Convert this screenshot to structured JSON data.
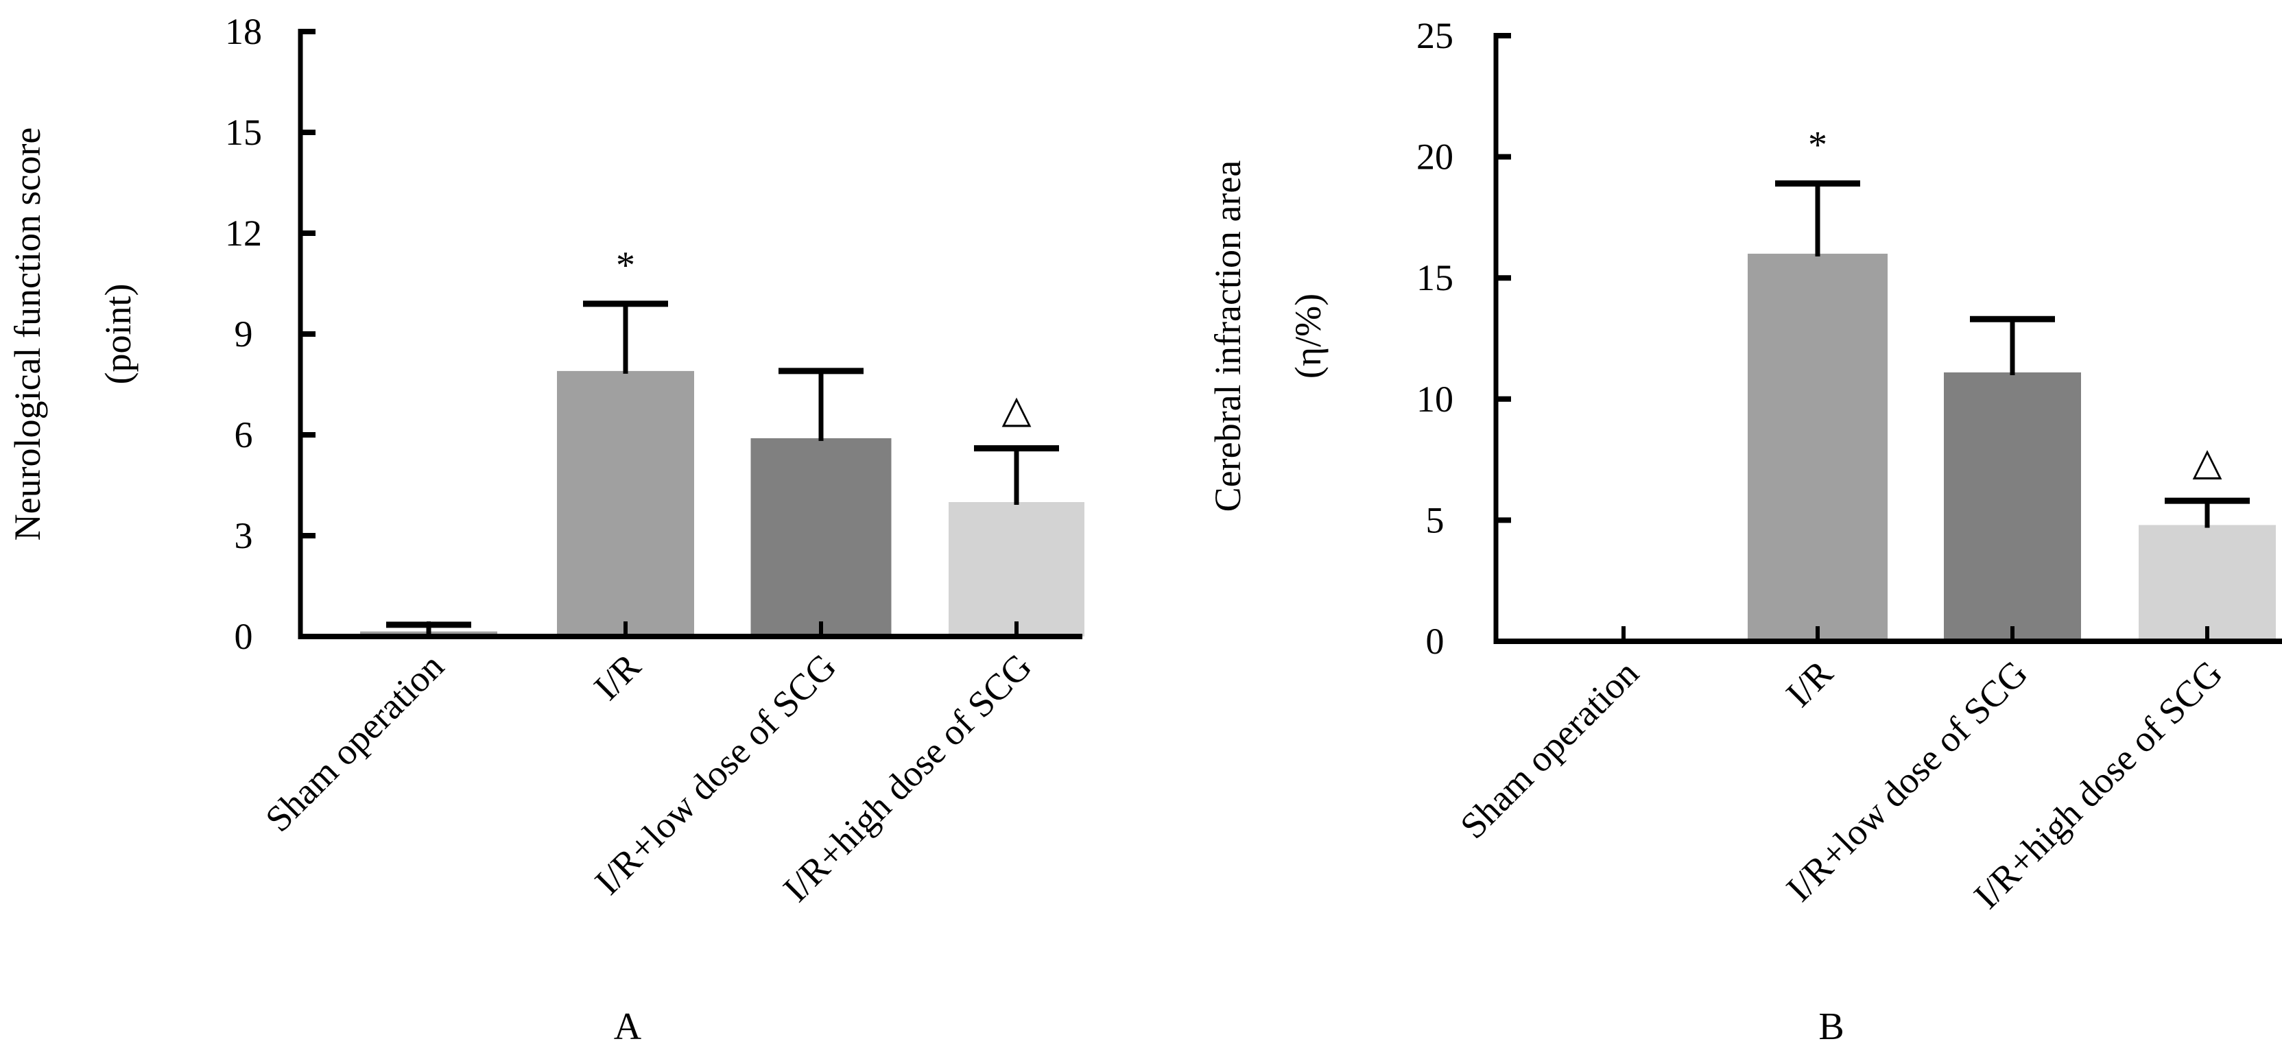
{
  "chart_data": [
    {
      "type": "bar",
      "panel": "A",
      "title": "",
      "xlabel": "",
      "ylabel": "Neurological function score",
      "ylabel_line2": "(point)",
      "ylim": [
        0,
        18
      ],
      "yticks": [
        0,
        3,
        6,
        9,
        12,
        15,
        18
      ],
      "grid": false,
      "categories": [
        "Sham operation",
        "I/R",
        "I/R+low dose of SCG",
        "I/R+high dose of SCG"
      ],
      "values": [
        0.15,
        7.9,
        5.9,
        4.0
      ],
      "error_upper": [
        0.35,
        9.9,
        7.9,
        5.6
      ],
      "markers": [
        "",
        "*",
        "",
        "△"
      ],
      "colors": [
        "#a0a0a0",
        "#a0a0a0",
        "#808080",
        "#d3d3d3"
      ]
    },
    {
      "type": "bar",
      "panel": "B",
      "title": "",
      "xlabel": "",
      "ylabel": "Cerebral infraction area",
      "ylabel_line2": "(η/%)",
      "ylim": [
        0,
        25
      ],
      "yticks": [
        0,
        5,
        10,
        15,
        20,
        25
      ],
      "grid": false,
      "categories": [
        "Sham operation",
        "I/R",
        "I/R+low dose of SCG",
        "I/R+high dose of SCG"
      ],
      "values": [
        0,
        16.0,
        11.1,
        4.8
      ],
      "error_upper": [
        0,
        18.9,
        13.3,
        5.8
      ],
      "markers": [
        "",
        "*",
        "",
        "△"
      ],
      "colors": [
        "#a0a0a0",
        "#a0a0a0",
        "#808080",
        "#d3d3d3"
      ]
    }
  ],
  "panels": {
    "a_label": "A",
    "b_label": "B"
  }
}
